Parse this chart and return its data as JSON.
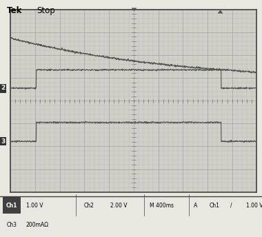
{
  "bg_color": "#c8c8c8",
  "screen_bg": "#d0d0c8",
  "grid_color": "#a0a0a0",
  "dot_color": "#888888",
  "border_color": "#404040",
  "title_text": "Tek Stop",
  "status_bar": "Ch1   1.00 V    Ch2   2.00 V    M 400ms   A  Ch1  /   1.00 V",
  "status_bar2": "Ch3   200mAΩ",
  "ch1_label": "1",
  "ch2_label": "2",
  "ch3_label": "3",
  "ch1_color": "#555555",
  "ch2_color": "#555555",
  "ch3_color": "#555555",
  "num_hdivs": 10,
  "num_vdivs": 8,
  "outer_bg": "#e8e8e0"
}
